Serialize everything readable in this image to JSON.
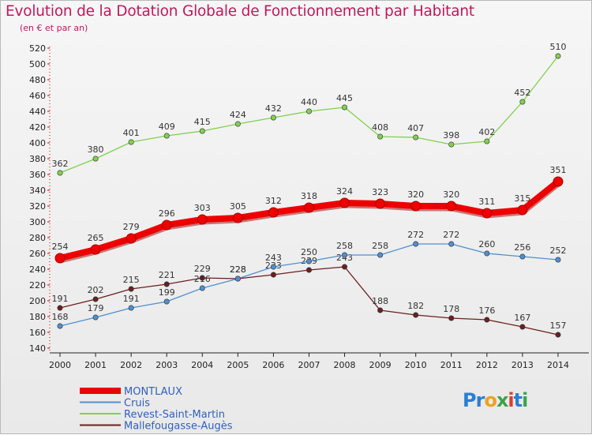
{
  "title": "Evolution de la Dotation Globale de Fonctionnement par Habitant",
  "subtitle": "(en € et par an)",
  "logo": {
    "text": "Proxiti",
    "letter_colors": [
      "#2a7fd4",
      "#2a7fd4",
      "#f0a020",
      "#3aa34a",
      "#e23a2a",
      "#2a7fd4",
      "#3aa34a"
    ]
  },
  "chart_data": {
    "type": "line",
    "x": [
      "2000",
      "2001",
      "2002",
      "2003",
      "2004",
      "2005",
      "2006",
      "2007",
      "2008",
      "2009",
      "2010",
      "2011",
      "2012",
      "2013",
      "2014"
    ],
    "ylim": [
      140,
      520
    ],
    "yticks": [
      140,
      160,
      180,
      200,
      220,
      240,
      260,
      280,
      300,
      320,
      340,
      360,
      380,
      400,
      420,
      440,
      460,
      480,
      500,
      520
    ],
    "grid": false,
    "legend_position": "bottom-left",
    "series": [
      {
        "name": "MONTLAUX",
        "color": "#ee0000",
        "values": [
          254,
          265,
          279,
          296,
          303,
          305,
          312,
          318,
          324,
          323,
          320,
          320,
          311,
          315,
          351
        ]
      },
      {
        "name": "Cruis",
        "color": "#4f8fd0",
        "values": [
          168,
          179,
          191,
          199,
          216,
          228,
          243,
          250,
          258,
          258,
          272,
          272,
          260,
          256,
          252
        ]
      },
      {
        "name": "Revest-Saint-Martin",
        "color": "#7fd14f",
        "values": [
          362,
          380,
          401,
          409,
          415,
          424,
          432,
          440,
          445,
          408,
          407,
          398,
          402,
          452,
          510
        ]
      },
      {
        "name": "Mallefougasse-Augès",
        "color": "#6b1f1f",
        "values": [
          191,
          202,
          215,
          221,
          229,
          228,
          233,
          239,
          243,
          188,
          182,
          178,
          176,
          167,
          157
        ]
      }
    ]
  }
}
